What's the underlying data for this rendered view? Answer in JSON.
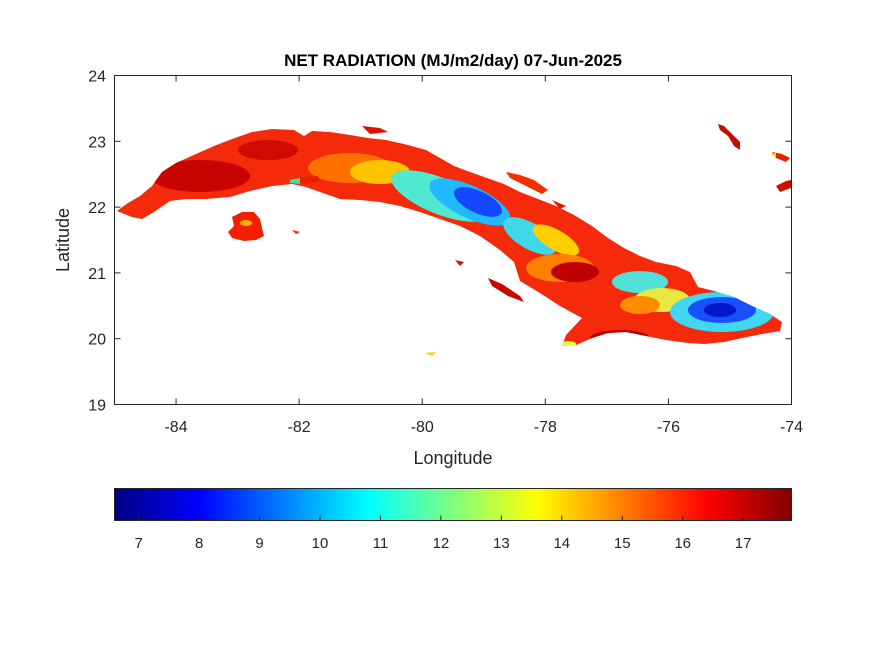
{
  "chart_data": {
    "type": "heatmap",
    "title": "NET RADIATION (MJ/m2/day) 07-Jun-2025",
    "xlabel": "Longitude",
    "ylabel": "Latitude",
    "xlim": [
      -85,
      -74
    ],
    "ylim": [
      19,
      24
    ],
    "xticks": [
      -84,
      -82,
      -80,
      -78,
      -76,
      -74
    ],
    "xtick_labels": [
      "-84",
      "-82",
      "-80",
      "-78",
      "-76",
      "-74"
    ],
    "yticks": [
      19,
      20,
      21,
      22,
      23,
      24
    ],
    "ytick_labels": [
      "19",
      "20",
      "21",
      "22",
      "23",
      "24"
    ],
    "grid": false,
    "colormap": "jet",
    "colorbar": {
      "orientation": "horizontal",
      "placement": "below",
      "clim": [
        6.6,
        17.8
      ],
      "ticks": [
        7,
        8,
        9,
        10,
        11,
        12,
        13,
        14,
        15,
        16,
        17
      ],
      "tick_labels": [
        "7",
        "8",
        "9",
        "10",
        "11",
        "12",
        "13",
        "14",
        "15",
        "16",
        "17"
      ]
    },
    "colors": {
      "high_red": "#ff1a00",
      "dark_red": "#a80000",
      "orange": "#ff7a00",
      "yellow": "#ffe800",
      "cyan": "#40e0e0",
      "blue": "#1060ff",
      "deep_blue": "#0010c8"
    },
    "region_values": [
      {
        "lon": -84.2,
        "lat": 22.2,
        "value": 16.5
      },
      {
        "lon": -82.8,
        "lat": 22.8,
        "value": 16.2
      },
      {
        "lon": -81.0,
        "lat": 22.7,
        "value": 14.5
      },
      {
        "lon": -80.3,
        "lat": 22.5,
        "value": 12.0
      },
      {
        "lon": -79.3,
        "lat": 22.1,
        "value": 8.5
      },
      {
        "lon": -78.6,
        "lat": 21.7,
        "value": 10.5
      },
      {
        "lon": -78.0,
        "lat": 21.2,
        "value": 15.5
      },
      {
        "lon": -77.0,
        "lat": 21.0,
        "value": 15.0
      },
      {
        "lon": -76.6,
        "lat": 20.6,
        "value": 12.5
      },
      {
        "lon": -75.3,
        "lat": 20.3,
        "value": 8.3
      },
      {
        "lon": -77.3,
        "lat": 20.1,
        "value": 16.3
      },
      {
        "lon": -82.8,
        "lat": 21.7,
        "value": 16.0
      }
    ]
  }
}
